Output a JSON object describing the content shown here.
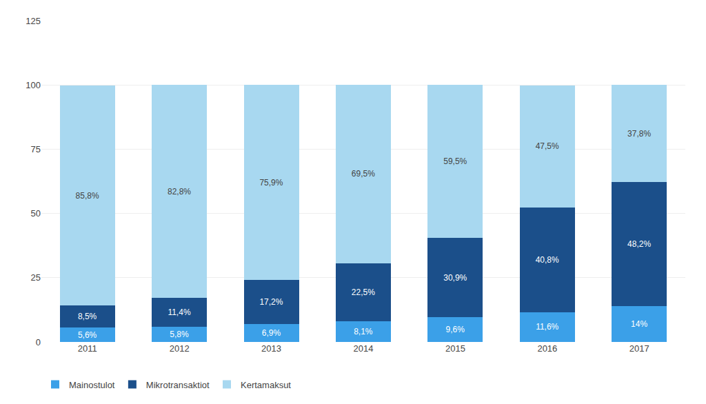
{
  "chart_data": {
    "type": "bar",
    "stacked": true,
    "categories": [
      "2011",
      "2012",
      "2013",
      "2014",
      "2015",
      "2016",
      "2017"
    ],
    "series": [
      {
        "name": "Mainostulot",
        "color": "#3BA0E8",
        "values": [
          5.6,
          5.8,
          6.9,
          8.1,
          9.6,
          11.6,
          14.0
        ],
        "value_labels": [
          "5,6%",
          "5,8%",
          "6,9%",
          "8,1%",
          "9,6%",
          "11,6%",
          "14%"
        ]
      },
      {
        "name": "Mikrotransaktiot",
        "color": "#1B4F8A",
        "values": [
          8.5,
          11.4,
          17.2,
          22.5,
          30.9,
          40.8,
          48.2
        ],
        "value_labels": [
          "8,5%",
          "11,4%",
          "17,2%",
          "22,5%",
          "30,9%",
          "40,8%",
          "48,2%"
        ]
      },
      {
        "name": "Kertamaksut",
        "color": "#A8D8F0",
        "values": [
          85.8,
          82.8,
          75.9,
          69.5,
          59.5,
          47.5,
          37.8
        ],
        "value_labels": [
          "85,8%",
          "82,8%",
          "75,9%",
          "69,5%",
          "59,5%",
          "47,5%",
          "37,8%"
        ]
      }
    ],
    "data_labels": true,
    "ylim": [
      0,
      125
    ],
    "yticks": [
      0,
      25,
      50,
      75,
      100,
      125
    ],
    "grid": true,
    "legend": "lower left"
  }
}
